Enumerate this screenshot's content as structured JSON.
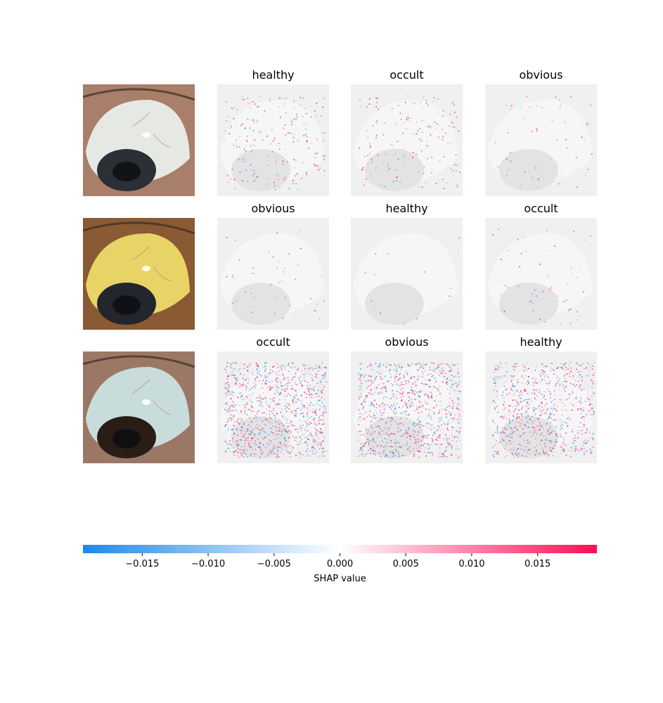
{
  "rows": [
    {
      "photo": {
        "icon": "eye-photo-white-sclera",
        "sclera_color": "#e6e9e3",
        "iris_color": "#2b2f36",
        "skin_color": "#a97f6a"
      },
      "panels": [
        {
          "title": "healthy",
          "intensity": 0.15
        },
        {
          "title": "occult",
          "intensity": 0.12
        },
        {
          "title": "obvious",
          "intensity": 0.04
        }
      ]
    },
    {
      "photo": {
        "icon": "eye-photo-yellow-sclera",
        "sclera_color": "#e8d466",
        "iris_color": "#23262c",
        "skin_color": "#8a5a34"
      },
      "panels": [
        {
          "title": "obvious",
          "intensity": 0.03
        },
        {
          "title": "healthy",
          "intensity": 0.01
        },
        {
          "title": "occult",
          "intensity": 0.04
        }
      ]
    },
    {
      "photo": {
        "icon": "eye-photo-bluish-sclera",
        "sclera_color": "#c9dcdc",
        "iris_color": "#2a1d16",
        "skin_color": "#9b7866"
      },
      "panels": [
        {
          "title": "occult",
          "intensity": 0.7
        },
        {
          "title": "obvious",
          "intensity": 0.65
        },
        {
          "title": "healthy",
          "intensity": 0.55
        }
      ]
    }
  ],
  "colorbar": {
    "label": "SHAP value",
    "min": -0.0195,
    "max": 0.0195,
    "ticks": [
      {
        "value": -0.015,
        "label": "−0.015"
      },
      {
        "value": -0.01,
        "label": "−0.010"
      },
      {
        "value": -0.005,
        "label": "−0.005"
      },
      {
        "value": 0.0,
        "label": "0.000"
      },
      {
        "value": 0.005,
        "label": "0.005"
      },
      {
        "value": 0.01,
        "label": "0.010"
      },
      {
        "value": 0.015,
        "label": "0.015"
      }
    ],
    "negative_color": "#1e88e5",
    "positive_color": "#ff0d57"
  }
}
